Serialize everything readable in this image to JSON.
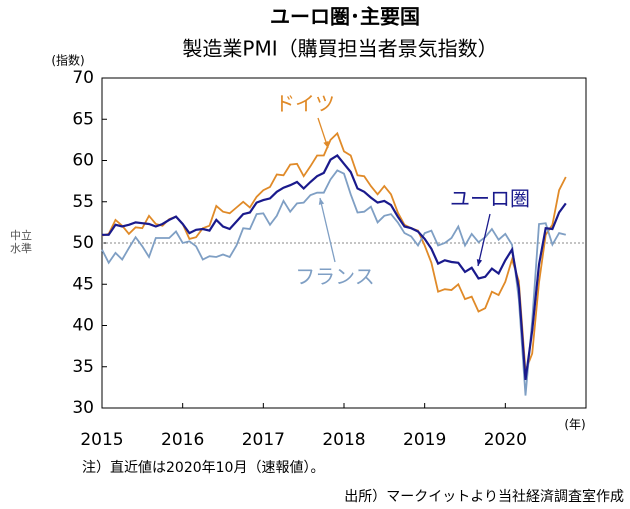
{
  "chart_data": {
    "type": "line",
    "title": "ユーロ圏･主要国",
    "subtitle": "製造業PMI（購買担当者景気指数）",
    "y_label": "(指数)",
    "x_label": "(年)",
    "note": "注）直近値は2020年10月（速報値）。",
    "source": "出所）マークイットより当社経済調査室作成",
    "reference_line": {
      "value": 50,
      "label": "中立水準"
    },
    "xlim": [
      2015,
      2021
    ],
    "xticks": [
      2015,
      2016,
      2017,
      2018,
      2019,
      2020
    ],
    "ylim": [
      30,
      70
    ],
    "yticks": [
      30,
      35,
      40,
      45,
      50,
      55,
      60,
      65,
      70
    ],
    "x": [
      2015.0,
      2015.083,
      2015.167,
      2015.25,
      2015.333,
      2015.417,
      2015.5,
      2015.583,
      2015.667,
      2015.75,
      2015.833,
      2015.917,
      2016.0,
      2016.083,
      2016.167,
      2016.25,
      2016.333,
      2016.417,
      2016.5,
      2016.583,
      2016.667,
      2016.75,
      2016.833,
      2016.917,
      2017.0,
      2017.083,
      2017.167,
      2017.25,
      2017.333,
      2017.417,
      2017.5,
      2017.583,
      2017.667,
      2017.75,
      2017.833,
      2017.917,
      2018.0,
      2018.083,
      2018.167,
      2018.25,
      2018.333,
      2018.417,
      2018.5,
      2018.583,
      2018.667,
      2018.75,
      2018.833,
      2018.917,
      2019.0,
      2019.083,
      2019.167,
      2019.25,
      2019.333,
      2019.417,
      2019.5,
      2019.583,
      2019.667,
      2019.75,
      2019.833,
      2019.917,
      2020.0,
      2020.083,
      2020.167,
      2020.25,
      2020.333,
      2020.417,
      2020.5,
      2020.583,
      2020.667,
      2020.75
    ],
    "series": [
      {
        "name": "ドイツ",
        "color": "#e08a28",
        "values": [
          50.9,
          51.1,
          52.8,
          52.1,
          51.1,
          51.9,
          51.8,
          53.3,
          52.3,
          52.1,
          52.9,
          53.2,
          52.3,
          50.5,
          50.7,
          51.8,
          52.1,
          54.5,
          53.8,
          53.6,
          54.3,
          55.0,
          54.3,
          55.6,
          56.4,
          56.8,
          58.3,
          58.2,
          59.5,
          59.6,
          58.1,
          59.3,
          60.6,
          60.6,
          62.5,
          63.3,
          61.1,
          60.6,
          58.2,
          58.1,
          56.9,
          55.9,
          56.9,
          55.9,
          53.7,
          52.2,
          51.8,
          51.5,
          49.7,
          47.6,
          44.1,
          44.4,
          44.3,
          45.0,
          43.2,
          43.5,
          41.7,
          42.1,
          44.1,
          43.7,
          45.3,
          48.0,
          45.4,
          34.5,
          36.6,
          45.2,
          51.0,
          52.2,
          56.4,
          58.0
        ]
      },
      {
        "name": "フランス",
        "color": "#7f9fc4",
        "values": [
          49.2,
          47.6,
          48.8,
          48.0,
          49.4,
          50.7,
          49.6,
          48.3,
          50.6,
          50.6,
          50.6,
          51.4,
          50.0,
          50.2,
          49.6,
          48.0,
          48.4,
          48.3,
          48.6,
          48.3,
          49.7,
          51.8,
          51.7,
          53.5,
          53.6,
          52.2,
          53.3,
          55.1,
          53.8,
          54.8,
          54.9,
          55.8,
          56.1,
          56.1,
          57.7,
          58.8,
          58.4,
          55.9,
          53.7,
          53.8,
          54.4,
          52.5,
          53.3,
          53.5,
          52.5,
          51.2,
          50.8,
          49.7,
          51.2,
          51.5,
          49.7,
          50.0,
          50.6,
          52.0,
          49.7,
          51.1,
          50.1,
          50.7,
          51.7,
          50.4,
          51.1,
          49.8,
          43.2,
          31.5,
          40.6,
          52.3,
          52.4,
          49.8,
          51.2,
          51.0
        ]
      },
      {
        "name": "ユーロ圏",
        "color": "#1a1a8c",
        "values": [
          51.0,
          51.0,
          52.2,
          52.0,
          52.2,
          52.5,
          52.4,
          52.3,
          52.0,
          52.3,
          52.8,
          53.2,
          52.3,
          51.2,
          51.6,
          51.7,
          51.5,
          52.8,
          52.0,
          51.7,
          52.6,
          53.5,
          53.7,
          54.9,
          55.2,
          55.4,
          56.2,
          56.7,
          57.0,
          57.4,
          56.6,
          57.4,
          58.1,
          58.5,
          60.1,
          60.6,
          59.6,
          58.6,
          56.6,
          56.2,
          55.5,
          54.9,
          55.1,
          54.6,
          53.2,
          52.0,
          51.8,
          51.4,
          50.5,
          49.3,
          47.5,
          47.9,
          47.7,
          47.6,
          46.5,
          47.0,
          45.7,
          45.9,
          46.9,
          46.3,
          47.9,
          49.2,
          44.5,
          33.4,
          39.4,
          47.4,
          51.8,
          51.7,
          53.7,
          54.8
        ]
      }
    ]
  }
}
